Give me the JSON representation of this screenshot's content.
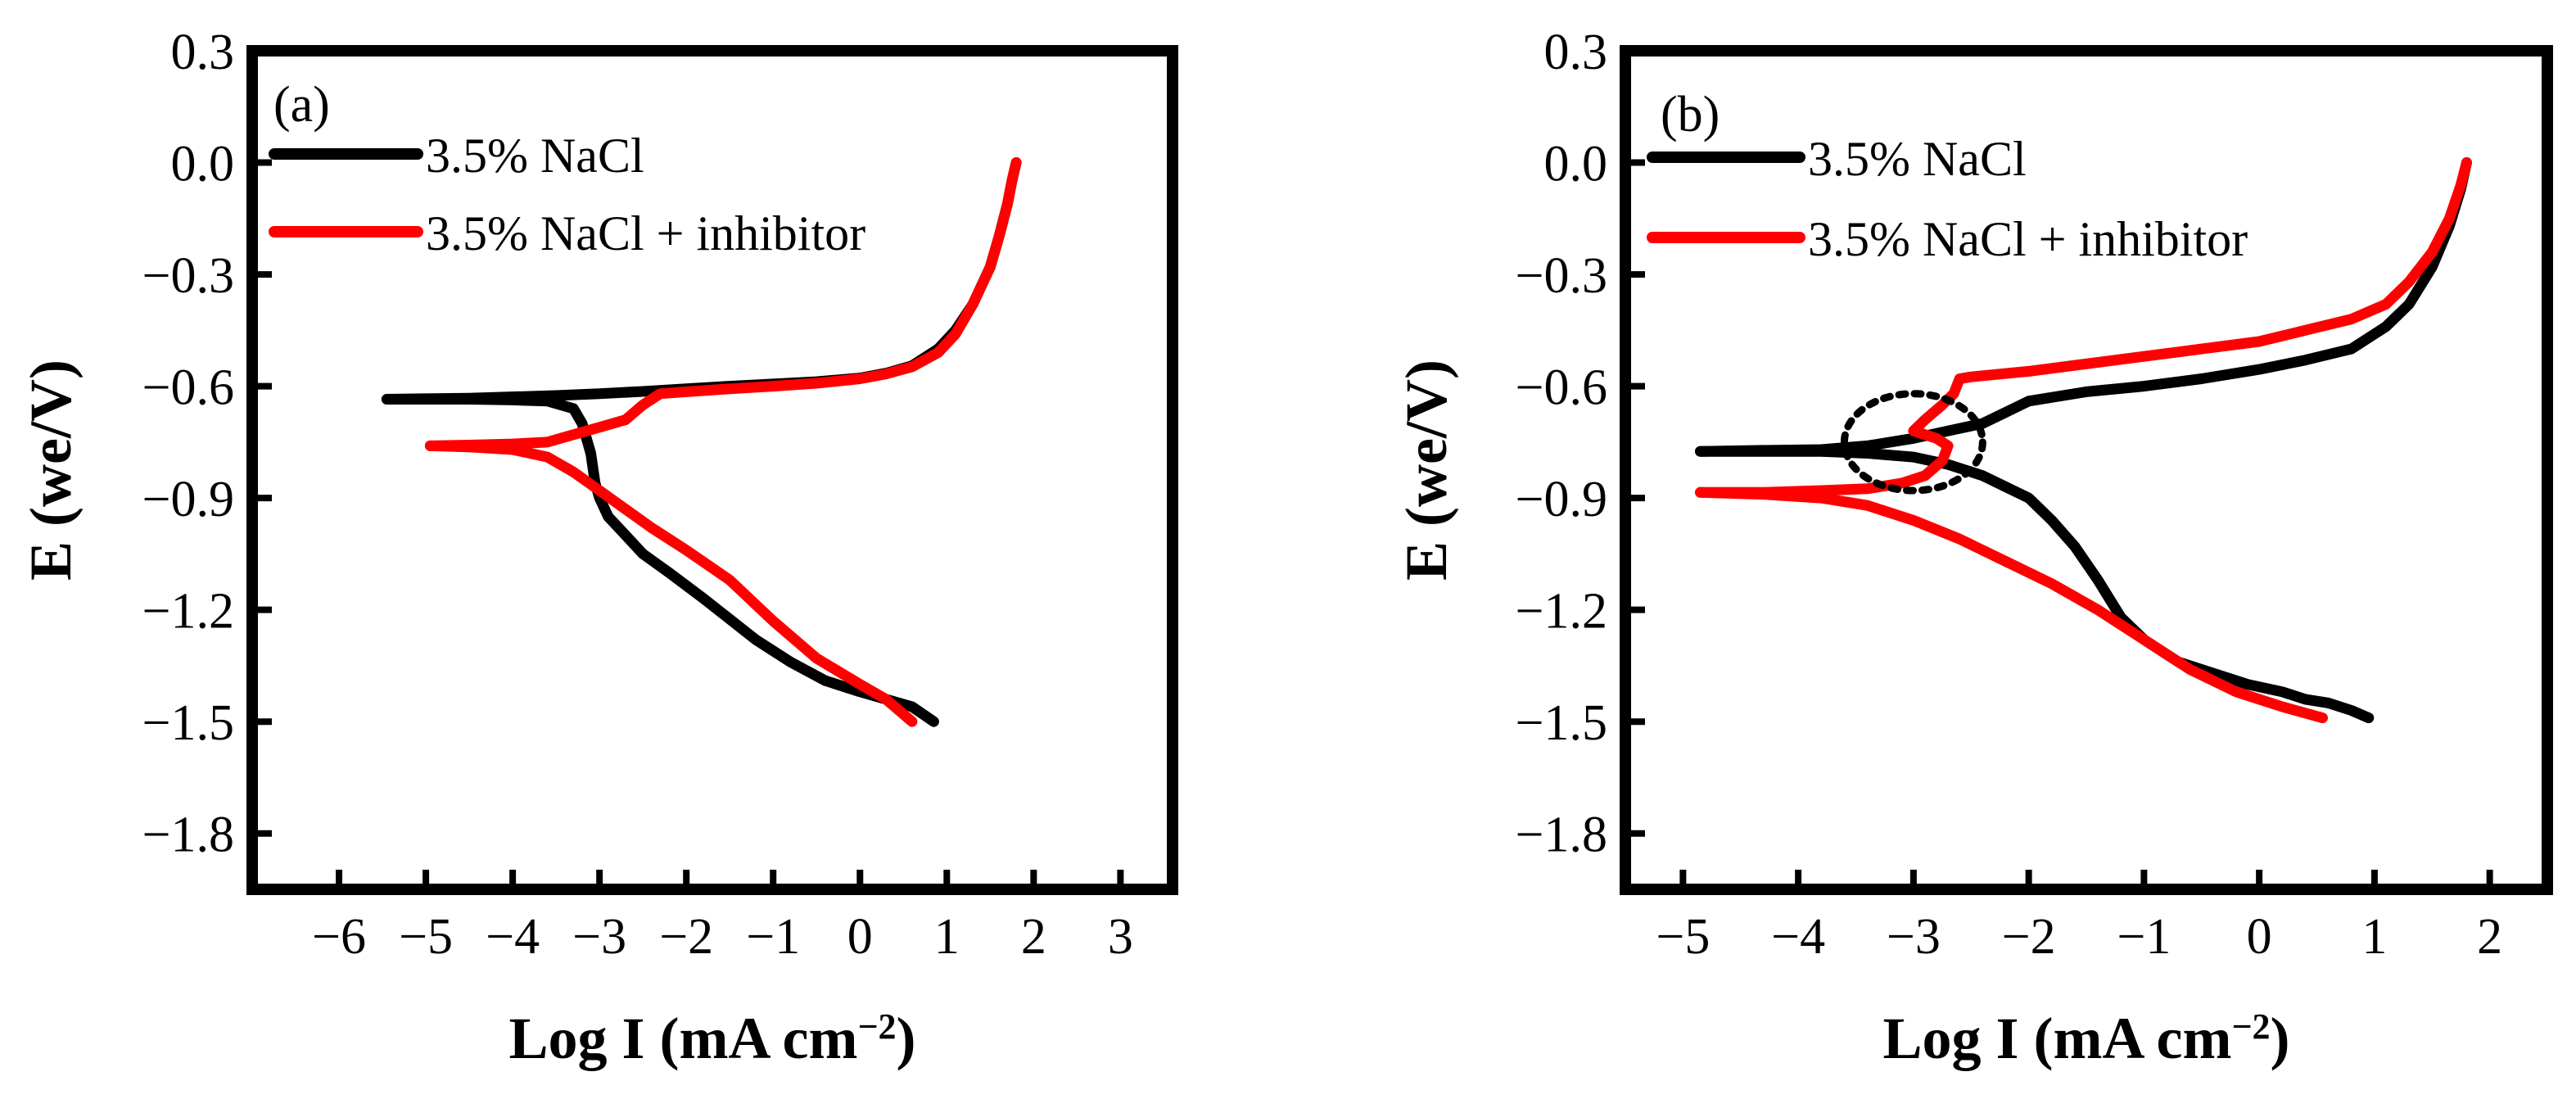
{
  "chart_data": [
    {
      "type": "line",
      "panel_label": "(a)",
      "xlabel": "Log I (mA cm",
      "xlabel_sup": "−2",
      "xlabel_close": ")",
      "ylabel": "E (we/V)",
      "xlim": [
        -7,
        3.6
      ],
      "ylim": [
        -1.95,
        0.3
      ],
      "xticks": [
        -6,
        -5,
        -4,
        -3,
        -2,
        -1,
        0,
        1,
        2,
        3
      ],
      "xtick_labels": [
        "−6",
        "−5",
        "−4",
        "−3",
        "−2",
        "−1",
        "0",
        "1",
        "2",
        "3"
      ],
      "yticks": [
        0.3,
        0.0,
        -0.3,
        -0.6,
        -0.9,
        -1.2,
        -1.5,
        -1.8
      ],
      "ytick_labels": [
        "0.3",
        "0.0",
        "−0.3",
        "−0.6",
        "−0.9",
        "−1.2",
        "−1.5",
        "−1.8"
      ],
      "grid": false,
      "legend": "top-left",
      "series": [
        {
          "name": "3.5% NaCl",
          "color": "#000000",
          "x": [
            -5.45,
            -5.0,
            -4.5,
            -4.0,
            -3.6,
            -3.3,
            -3.2,
            -3.1,
            -3.05,
            -3.0,
            -2.9,
            -2.7,
            -2.5,
            -2.2,
            -1.8,
            -1.2,
            -0.8,
            -0.4,
            0.0,
            0.3,
            0.6,
            0.85
          ],
          "y": [
            -0.635,
            -0.635,
            -0.635,
            -0.637,
            -0.64,
            -0.66,
            -0.7,
            -0.78,
            -0.86,
            -0.9,
            -0.95,
            -1.0,
            -1.05,
            -1.1,
            -1.17,
            -1.28,
            -1.34,
            -1.39,
            -1.42,
            -1.44,
            -1.46,
            -1.5
          ]
        },
        {
          "name": "3.5% NaCl",
          "color": "#000000",
          "x": [
            -5.45,
            -4.5,
            -3.5,
            -3.0,
            -2.5,
            -2.0,
            -1.5,
            -1.0,
            -0.5,
            0.0,
            0.3,
            0.6,
            0.9,
            1.1,
            1.3,
            1.5,
            1.6,
            1.7,
            1.75,
            1.8
          ],
          "y": [
            -0.635,
            -0.632,
            -0.625,
            -0.62,
            -0.614,
            -0.607,
            -0.6,
            -0.594,
            -0.588,
            -0.578,
            -0.565,
            -0.545,
            -0.5,
            -0.45,
            -0.38,
            -0.28,
            -0.2,
            -0.11,
            -0.05,
            0.0
          ]
        },
        {
          "name": "3.5% NaCl + inhibitor",
          "color": "#ff0000",
          "x": [
            -4.95,
            -4.5,
            -4.0,
            -3.6,
            -3.3,
            -3.0,
            -2.7,
            -2.5,
            -2.3,
            -2.0,
            -1.5,
            -1.0,
            -0.5,
            0.0,
            0.3,
            0.6,
            0.9,
            1.1,
            1.3,
            1.5,
            1.6,
            1.7,
            1.75,
            1.8
          ],
          "y": [
            -0.76,
            -0.758,
            -0.755,
            -0.75,
            -0.73,
            -0.71,
            -0.69,
            -0.65,
            -0.62,
            -0.615,
            -0.607,
            -0.6,
            -0.592,
            -0.58,
            -0.567,
            -0.548,
            -0.51,
            -0.46,
            -0.38,
            -0.28,
            -0.2,
            -0.11,
            -0.05,
            0.0
          ]
        },
        {
          "name": "3.5% NaCl + inhibitor",
          "color": "#ff0000",
          "x": [
            -4.95,
            -4.5,
            -4.0,
            -3.6,
            -3.3,
            -3.0,
            -2.7,
            -2.4,
            -2.0,
            -1.5,
            -1.0,
            -0.5,
            0.0,
            0.3,
            0.6
          ],
          "y": [
            -0.76,
            -0.763,
            -0.77,
            -0.79,
            -0.83,
            -0.88,
            -0.93,
            -0.98,
            -1.04,
            -1.12,
            -1.23,
            -1.33,
            -1.4,
            -1.44,
            -1.5
          ]
        }
      ]
    },
    {
      "type": "line",
      "panel_label": "(b)",
      "xlabel": "Log I (mA cm",
      "xlabel_sup": "−2",
      "xlabel_close": ")",
      "ylabel": "E (we/V)",
      "xlim": [
        -5.5,
        2.5
      ],
      "ylim": [
        -1.95,
        0.3
      ],
      "xticks": [
        -5,
        -4,
        -3,
        -2,
        -1,
        0,
        1,
        2
      ],
      "xtick_labels": [
        "−5",
        "−4",
        "−3",
        "−2",
        "−1",
        "0",
        "1",
        "2"
      ],
      "yticks": [
        0.3,
        0.0,
        -0.3,
        -0.6,
        -0.9,
        -1.2,
        -1.5,
        -1.8
      ],
      "ytick_labels": [
        "0.3",
        "0.0",
        "−0.3",
        "−0.6",
        "−0.9",
        "−1.2",
        "−1.5",
        "−1.8"
      ],
      "grid": false,
      "legend": "top-left",
      "annotation": {
        "type": "dotted-circle",
        "cx": -3.0,
        "cy": -0.75,
        "radius_x": 0.6,
        "radius_y": 0.13
      },
      "series": [
        {
          "name": "3.5% NaCl",
          "color": "#000000",
          "x": [
            -4.85,
            -4.3,
            -3.8,
            -3.4,
            -3.0,
            -2.7,
            -2.4,
            -2.2,
            -2.0,
            -1.8,
            -1.6,
            -1.4,
            -1.2,
            -1.0,
            -0.7,
            -0.4,
            -0.1,
            0.2,
            0.4,
            0.6,
            0.8,
            0.95
          ],
          "y": [
            -0.775,
            -0.775,
            -0.775,
            -0.78,
            -0.79,
            -0.81,
            -0.84,
            -0.87,
            -0.9,
            -0.96,
            -1.03,
            -1.12,
            -1.22,
            -1.28,
            -1.34,
            -1.37,
            -1.4,
            -1.42,
            -1.44,
            -1.45,
            -1.47,
            -1.49
          ]
        },
        {
          "name": "3.5% NaCl",
          "color": "#000000",
          "x": [
            -4.85,
            -4.3,
            -3.8,
            -3.4,
            -3.0,
            -2.7,
            -2.4,
            -2.2,
            -2.0,
            -1.5,
            -1.0,
            -0.5,
            0.0,
            0.4,
            0.8,
            1.1,
            1.3,
            1.5,
            1.65,
            1.75,
            1.8
          ],
          "y": [
            -0.775,
            -0.772,
            -0.77,
            -0.76,
            -0.74,
            -0.72,
            -0.7,
            -0.67,
            -0.64,
            -0.615,
            -0.6,
            -0.58,
            -0.555,
            -0.53,
            -0.5,
            -0.44,
            -0.38,
            -0.28,
            -0.17,
            -0.07,
            0.0
          ]
        },
        {
          "name": "3.5% NaCl + inhibitor",
          "color": "#ff0000",
          "x": [
            -4.85,
            -4.3,
            -3.8,
            -3.4,
            -3.1,
            -2.9,
            -2.75,
            -2.7,
            -2.8,
            -3.0,
            -2.9,
            -2.75,
            -2.65,
            -2.6,
            -2.5,
            -2.0,
            -1.5,
            -1.0,
            -0.5,
            0.0,
            0.4,
            0.8,
            1.1,
            1.3,
            1.5,
            1.65,
            1.75,
            1.8
          ],
          "y": [
            -0.885,
            -0.885,
            -0.88,
            -0.875,
            -0.86,
            -0.84,
            -0.8,
            -0.76,
            -0.74,
            -0.72,
            -0.69,
            -0.65,
            -0.62,
            -0.58,
            -0.575,
            -0.56,
            -0.54,
            -0.52,
            -0.5,
            -0.48,
            -0.45,
            -0.42,
            -0.38,
            -0.32,
            -0.24,
            -0.15,
            -0.06,
            0.0
          ]
        },
        {
          "name": "3.5% NaCl + inhibitor",
          "color": "#ff0000",
          "x": [
            -4.85,
            -4.3,
            -3.8,
            -3.4,
            -3.0,
            -2.6,
            -2.2,
            -1.8,
            -1.4,
            -1.0,
            -0.6,
            -0.2,
            0.2,
            0.55
          ],
          "y": [
            -0.885,
            -0.89,
            -0.9,
            -0.92,
            -0.96,
            -1.01,
            -1.07,
            -1.13,
            -1.2,
            -1.28,
            -1.36,
            -1.42,
            -1.46,
            -1.49
          ]
        }
      ]
    }
  ]
}
